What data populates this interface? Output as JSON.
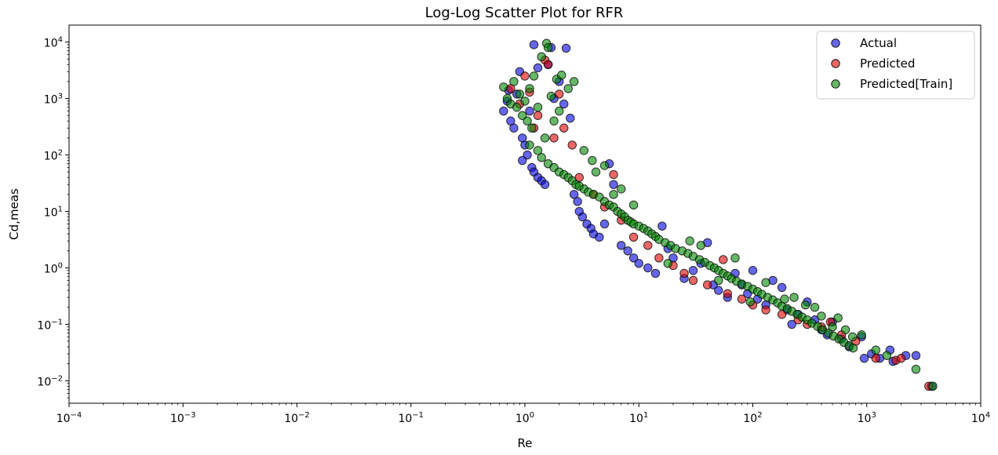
{
  "chart_data": {
    "type": "scatter",
    "title": "Log-Log Scatter Plot for RFR",
    "xlabel": "Re",
    "ylabel": "Cd,meas",
    "xscale": "log",
    "yscale": "log",
    "xlim": [
      0.0001,
      10000
    ],
    "ylim": [
      0.004,
      20000
    ],
    "x_ticks": [
      0.0001,
      0.001,
      0.01,
      0.1,
      1,
      10,
      100,
      1000,
      10000
    ],
    "x_tick_labels": [
      {
        "base": "10",
        "exp": "−4"
      },
      {
        "base": "10",
        "exp": "−3"
      },
      {
        "base": "10",
        "exp": "−2"
      },
      {
        "base": "10",
        "exp": "−1"
      },
      {
        "base": "10",
        "exp": "0"
      },
      {
        "base": "10",
        "exp": "1"
      },
      {
        "base": "10",
        "exp": "2"
      },
      {
        "base": "10",
        "exp": "3"
      },
      {
        "base": "10",
        "exp": "4"
      }
    ],
    "y_ticks": [
      0.01,
      0.1,
      1,
      10,
      100,
      1000,
      10000
    ],
    "y_tick_labels": [
      {
        "base": "10",
        "exp": "−2"
      },
      {
        "base": "10",
        "exp": "−1"
      },
      {
        "base": "10",
        "exp": "0"
      },
      {
        "base": "10",
        "exp": "1"
      },
      {
        "base": "10",
        "exp": "2"
      },
      {
        "base": "10",
        "exp": "3"
      },
      {
        "base": "10",
        "exp": "4"
      }
    ],
    "grid": false,
    "legend_position": "top-right",
    "series": [
      {
        "name": "Actual",
        "color": "#0000dd",
        "points": [
          [
            0.65,
            600
          ],
          [
            0.7,
            900
          ],
          [
            0.72,
            1400
          ],
          [
            0.75,
            400
          ],
          [
            0.8,
            300
          ],
          [
            0.85,
            1200
          ],
          [
            0.9,
            3000
          ],
          [
            0.95,
            200
          ],
          [
            1.0,
            150
          ],
          [
            1.05,
            100
          ],
          [
            0.95,
            80
          ],
          [
            1.1,
            600
          ],
          [
            1.15,
            60
          ],
          [
            1.2,
            50
          ],
          [
            1.3,
            40
          ],
          [
            1.4,
            35
          ],
          [
            1.5,
            30
          ],
          [
            1.6,
            4000
          ],
          [
            1.7,
            8000
          ],
          [
            1.8,
            1000
          ],
          [
            2.0,
            2000
          ],
          [
            2.2,
            800
          ],
          [
            2.5,
            450
          ],
          [
            2.7,
            20
          ],
          [
            2.9,
            15
          ],
          [
            3.0,
            10
          ],
          [
            3.2,
            8
          ],
          [
            3.5,
            6
          ],
          [
            3.8,
            5
          ],
          [
            4.0,
            4
          ],
          [
            4.5,
            3.5
          ],
          [
            5.0,
            6
          ],
          [
            5.5,
            70
          ],
          [
            6.0,
            30
          ],
          [
            7.0,
            2.5
          ],
          [
            8.0,
            2.0
          ],
          [
            9.0,
            1.5
          ],
          [
            10,
            1.2
          ],
          [
            12,
            1.0
          ],
          [
            14,
            0.8
          ],
          [
            16,
            5.5
          ],
          [
            18,
            2.2
          ],
          [
            20,
            1.5
          ],
          [
            25,
            0.65
          ],
          [
            30,
            0.9
          ],
          [
            35,
            1.2
          ],
          [
            40,
            2.8
          ],
          [
            45,
            0.5
          ],
          [
            50,
            0.4
          ],
          [
            60,
            0.3
          ],
          [
            70,
            0.8
          ],
          [
            80,
            0.5
          ],
          [
            90,
            0.35
          ],
          [
            100,
            0.9
          ],
          [
            110,
            0.28
          ],
          [
            130,
            0.22
          ],
          [
            150,
            0.6
          ],
          [
            180,
            0.45
          ],
          [
            200,
            0.18
          ],
          [
            220,
            0.1
          ],
          [
            250,
            0.15
          ],
          [
            300,
            0.25
          ],
          [
            350,
            0.12
          ],
          [
            400,
            0.08
          ],
          [
            450,
            0.065
          ],
          [
            500,
            0.11
          ],
          [
            600,
            0.055
          ],
          [
            700,
            0.04
          ],
          [
            900,
            0.06
          ],
          [
            950,
            0.025
          ],
          [
            1100,
            0.03
          ],
          [
            1300,
            0.025
          ],
          [
            1600,
            0.035
          ],
          [
            1700,
            0.022
          ],
          [
            2200,
            0.028
          ],
          [
            2700,
            0.028
          ],
          [
            3700,
            0.008
          ],
          [
            1.2,
            9000
          ],
          [
            1.3,
            3500
          ],
          [
            2.3,
            7800
          ]
        ]
      },
      {
        "name": "Predicted",
        "color": "#dd0000",
        "points": [
          [
            0.75,
            1500
          ],
          [
            0.9,
            800
          ],
          [
            1.0,
            2500
          ],
          [
            1.1,
            1300
          ],
          [
            1.2,
            300
          ],
          [
            1.3,
            500
          ],
          [
            1.5,
            4800
          ],
          [
            1.6,
            4000
          ],
          [
            1.8,
            200
          ],
          [
            2.0,
            1200
          ],
          [
            2.2,
            300
          ],
          [
            2.6,
            150
          ],
          [
            3.0,
            40
          ],
          [
            4.0,
            20
          ],
          [
            5.0,
            12
          ],
          [
            6.0,
            45
          ],
          [
            7.0,
            7
          ],
          [
            9.0,
            3.5
          ],
          [
            12,
            2.5
          ],
          [
            15,
            1.5
          ],
          [
            20,
            1.1
          ],
          [
            25,
            0.8
          ],
          [
            30,
            0.6
          ],
          [
            40,
            0.5
          ],
          [
            55,
            1.4
          ],
          [
            60,
            0.35
          ],
          [
            80,
            0.28
          ],
          [
            100,
            0.22
          ],
          [
            130,
            0.18
          ],
          [
            180,
            0.15
          ],
          [
            250,
            0.12
          ],
          [
            300,
            0.1
          ],
          [
            400,
            0.09
          ],
          [
            480,
            0.11
          ],
          [
            600,
            0.065
          ],
          [
            800,
            0.05
          ],
          [
            1200,
            0.025
          ],
          [
            1800,
            0.023
          ],
          [
            2000,
            0.025
          ],
          [
            3500,
            0.008
          ]
        ]
      },
      {
        "name": "Predicted[Train]",
        "color": "#008800",
        "points": [
          [
            0.65,
            1600
          ],
          [
            0.7,
            1000
          ],
          [
            0.75,
            800
          ],
          [
            0.8,
            2000
          ],
          [
            0.85,
            700
          ],
          [
            0.9,
            1200
          ],
          [
            0.95,
            500
          ],
          [
            1.0,
            900
          ],
          [
            1.05,
            400
          ],
          [
            1.1,
            1500
          ],
          [
            1.15,
            300
          ],
          [
            1.2,
            2500
          ],
          [
            1.3,
            700
          ],
          [
            1.4,
            5500
          ],
          [
            1.5,
            200
          ],
          [
            1.55,
            9500
          ],
          [
            1.6,
            8000
          ],
          [
            1.7,
            1100
          ],
          [
            1.8,
            400
          ],
          [
            1.9,
            2200
          ],
          [
            2.0,
            600
          ],
          [
            1.1,
            150
          ],
          [
            1.3,
            120
          ],
          [
            1.4,
            90
          ],
          [
            1.6,
            70
          ],
          [
            1.8,
            60
          ],
          [
            2.0,
            50
          ],
          [
            2.2,
            45
          ],
          [
            2.4,
            40
          ],
          [
            2.6,
            35
          ],
          [
            2.8,
            30
          ],
          [
            3.0,
            28
          ],
          [
            3.3,
            25
          ],
          [
            3.6,
            22
          ],
          [
            4.0,
            20
          ],
          [
            4.5,
            18
          ],
          [
            5.0,
            15
          ],
          [
            5.5,
            13
          ],
          [
            6.0,
            12
          ],
          [
            6.5,
            10
          ],
          [
            7.0,
            9
          ],
          [
            7.5,
            8
          ],
          [
            8.0,
            7
          ],
          [
            8.5,
            6.5
          ],
          [
            9.0,
            6
          ],
          [
            10,
            5.5
          ],
          [
            11,
            5
          ],
          [
            12,
            4.5
          ],
          [
            13,
            4
          ],
          [
            14,
            3.6
          ],
          [
            15,
            3.2
          ],
          [
            17,
            2.8
          ],
          [
            19,
            2.5
          ],
          [
            21,
            2.2
          ],
          [
            24,
            2.0
          ],
          [
            27,
            1.8
          ],
          [
            30,
            1.6
          ],
          [
            34,
            1.4
          ],
          [
            38,
            1.25
          ],
          [
            42,
            1.1
          ],
          [
            46,
            1.0
          ],
          [
            50,
            0.9
          ],
          [
            55,
            0.8
          ],
          [
            60,
            0.72
          ],
          [
            65,
            0.65
          ],
          [
            72,
            0.58
          ],
          [
            80,
            0.52
          ],
          [
            90,
            0.47
          ],
          [
            100,
            0.42
          ],
          [
            110,
            0.38
          ],
          [
            120,
            0.34
          ],
          [
            135,
            0.3
          ],
          [
            150,
            0.27
          ],
          [
            165,
            0.24
          ],
          [
            180,
            0.21
          ],
          [
            200,
            0.19
          ],
          [
            220,
            0.17
          ],
          [
            245,
            0.15
          ],
          [
            270,
            0.135
          ],
          [
            300,
            0.12
          ],
          [
            330,
            0.105
          ],
          [
            370,
            0.092
          ],
          [
            410,
            0.08
          ],
          [
            460,
            0.07
          ],
          [
            510,
            0.062
          ],
          [
            570,
            0.055
          ],
          [
            630,
            0.048
          ],
          [
            700,
            0.042
          ],
          [
            760,
            0.038
          ],
          [
            5.0,
            65
          ],
          [
            4.2,
            50
          ],
          [
            6.0,
            20
          ],
          [
            7.0,
            25
          ],
          [
            9.0,
            13
          ],
          [
            18,
            1.2
          ],
          [
            28,
            3
          ],
          [
            35,
            2.5
          ],
          [
            50,
            0.6
          ],
          [
            70,
            1.5
          ],
          [
            95,
            0.25
          ],
          [
            130,
            0.55
          ],
          [
            190,
            0.28
          ],
          [
            230,
            0.3
          ],
          [
            290,
            0.22
          ],
          [
            350,
            0.2
          ],
          [
            400,
            0.14
          ],
          [
            500,
            0.09
          ],
          [
            560,
            0.13
          ],
          [
            650,
            0.08
          ],
          [
            750,
            0.06
          ],
          [
            900,
            0.065
          ],
          [
            1200,
            0.035
          ],
          [
            1500,
            0.028
          ],
          [
            2700,
            0.016
          ],
          [
            3800,
            0.008
          ],
          [
            2.4,
            1500
          ],
          [
            2.7,
            2000
          ],
          [
            3.3,
            120
          ],
          [
            3.9,
            80
          ],
          [
            2.1,
            2600
          ]
        ]
      }
    ]
  }
}
